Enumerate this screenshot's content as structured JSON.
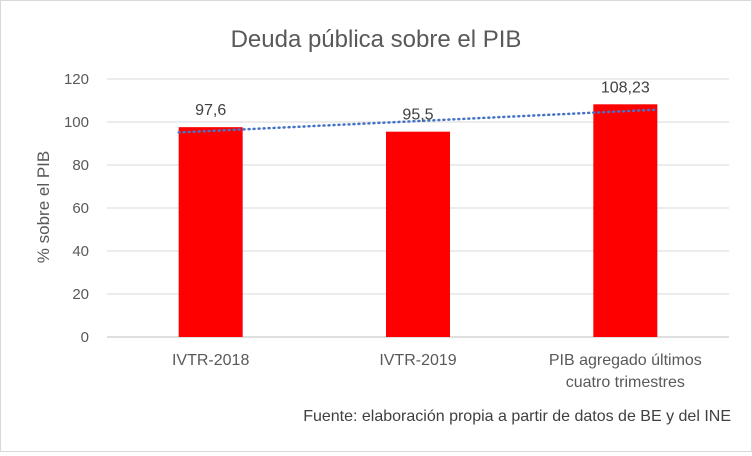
{
  "chart_data": {
    "type": "bar",
    "title": "Deuda pública sobre el PIB",
    "xlabel": "",
    "ylabel": "% sobre el PIB",
    "categories": [
      "IVTR-2018",
      "IVTR-2019",
      "PIB agregado últimos cuatro trimestres"
    ],
    "category_lines": [
      [
        "IVTR-2018"
      ],
      [
        "IVTR-2019"
      ],
      [
        "PIB agregado últimos",
        "cuatro trimestres"
      ]
    ],
    "values": [
      97.6,
      95.5,
      108.23
    ],
    "data_labels": [
      "97,6",
      "95,5",
      "108,23"
    ],
    "ylim": [
      0,
      120
    ],
    "yticks": [
      0,
      20,
      40,
      60,
      80,
      100,
      120
    ],
    "grid": true,
    "trendline": {
      "type": "linear",
      "style": "dotted",
      "color": "#4472c4"
    },
    "bar_color": "#ff0000",
    "source_note": "Fuente: elaboración propia a partir de datos de BE y del INE"
  }
}
